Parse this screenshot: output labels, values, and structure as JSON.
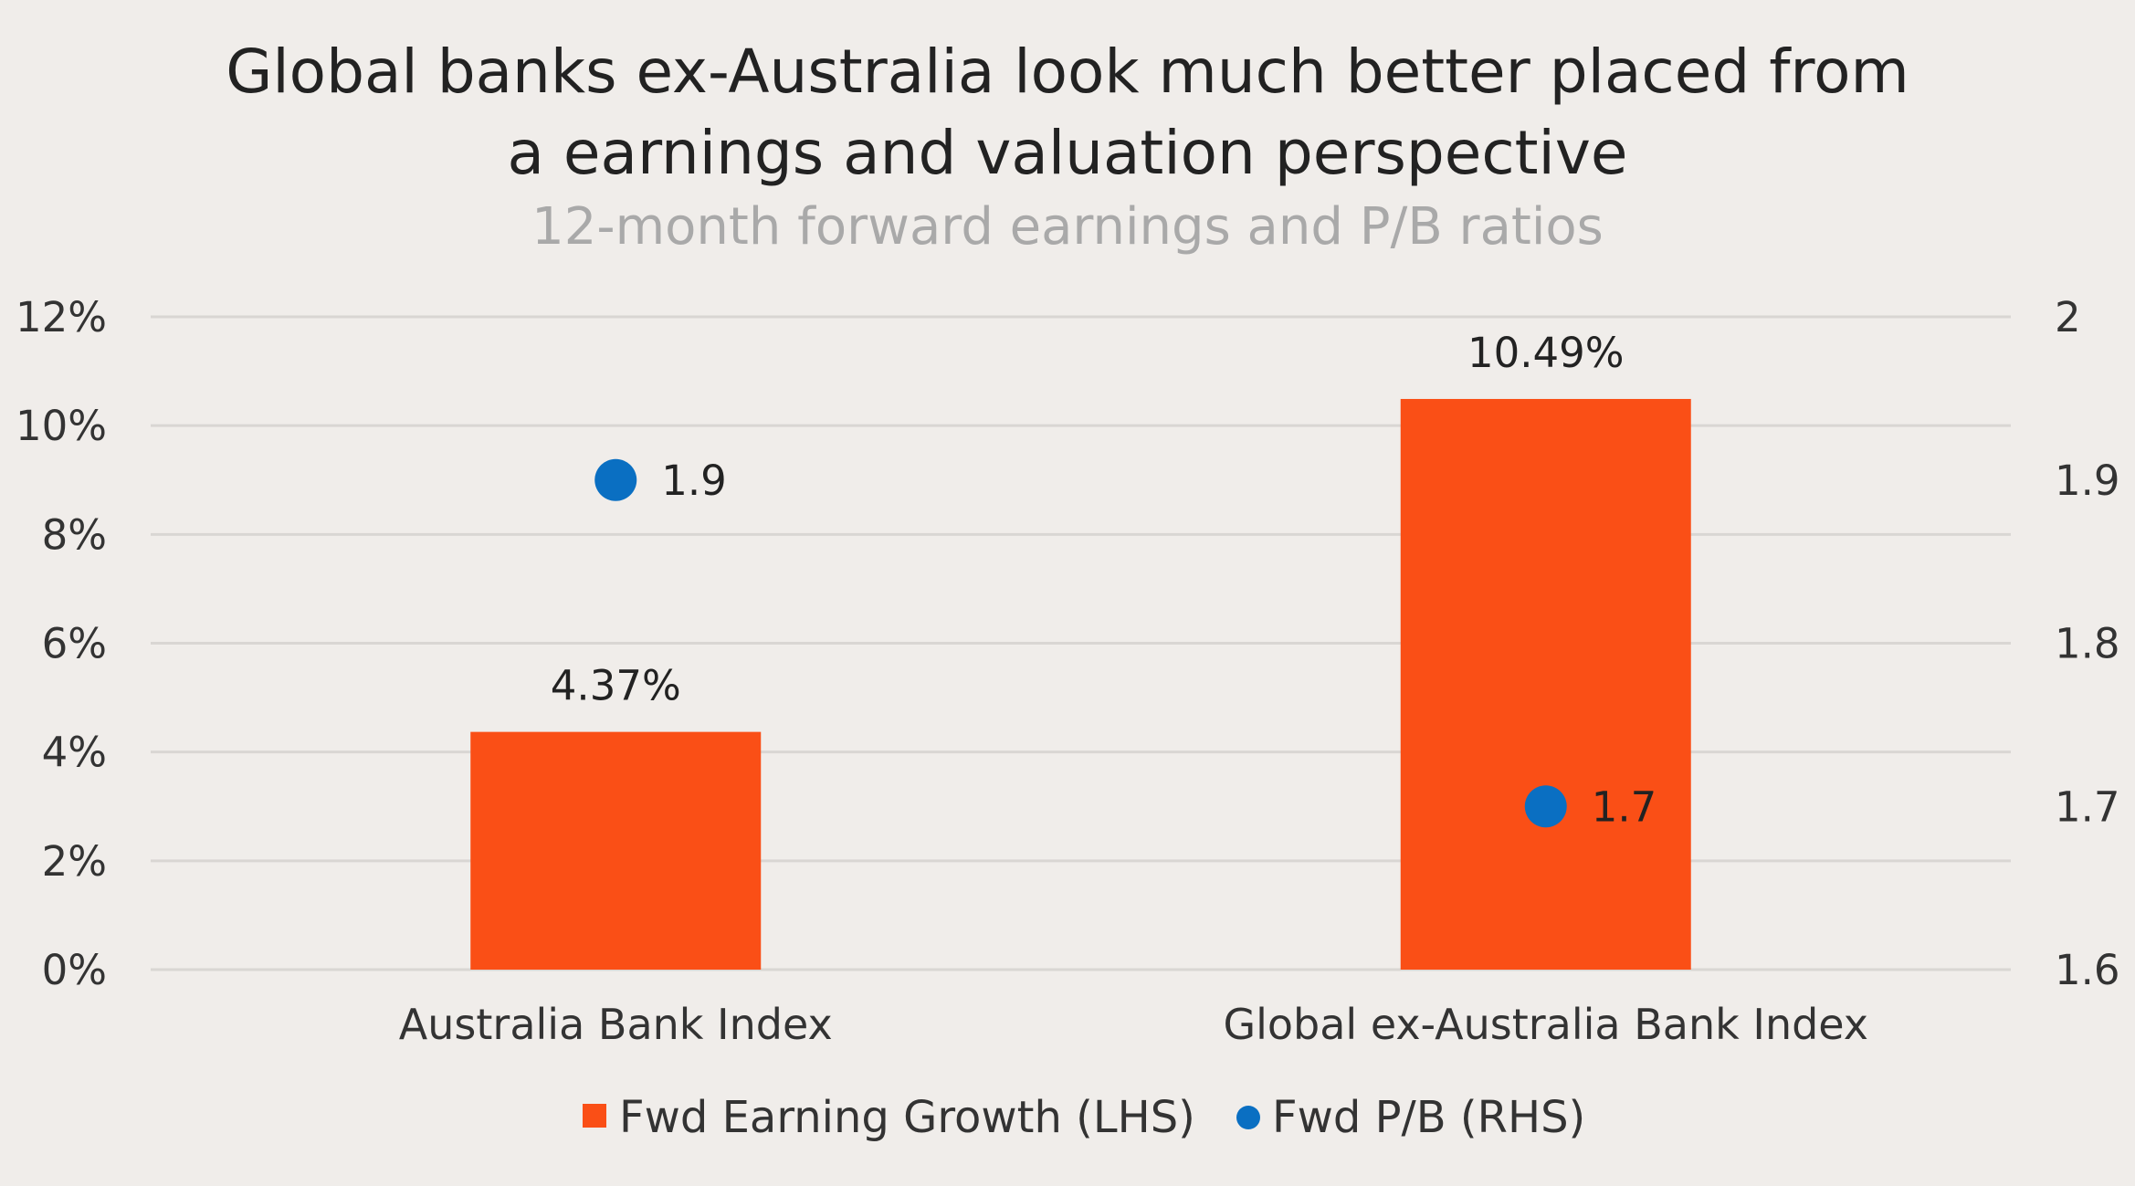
{
  "chart_data": {
    "type": "bar",
    "title_lines": [
      "Global banks ex-Australia look much better placed from",
      "a earnings and valuation perspective"
    ],
    "subtitle": "12-month forward earnings and P/B ratios",
    "categories": [
      "Australia Bank Index",
      "Global ex-Australia Bank Index"
    ],
    "series": [
      {
        "name": "Fwd Earning Growth (LHS)",
        "type": "bar",
        "axis": "left",
        "values": [
          4.37,
          10.49
        ],
        "labels": [
          "4.37%",
          "10.49%"
        ],
        "color": "#fa4f16"
      },
      {
        "name": "Fwd P/B (RHS)",
        "type": "scatter",
        "axis": "right",
        "values": [
          1.9,
          1.7
        ],
        "labels": [
          "1.9",
          "1.7"
        ],
        "color": "#0a6fc2"
      }
    ],
    "left_axis": {
      "min": 0,
      "max": 12,
      "ticks": [
        0,
        2,
        4,
        6,
        8,
        10,
        12
      ],
      "tick_labels": [
        "0%",
        "2%",
        "4%",
        "6%",
        "8%",
        "10%",
        "12%"
      ]
    },
    "right_axis": {
      "min": 1.6,
      "max": 2.0,
      "ticks": [
        1.6,
        1.7,
        1.8,
        1.9,
        2.0
      ],
      "tick_labels": [
        "1.6",
        "1.7",
        "1.8",
        "1.9",
        "2"
      ]
    },
    "grid": true,
    "legend_position": "bottom"
  }
}
